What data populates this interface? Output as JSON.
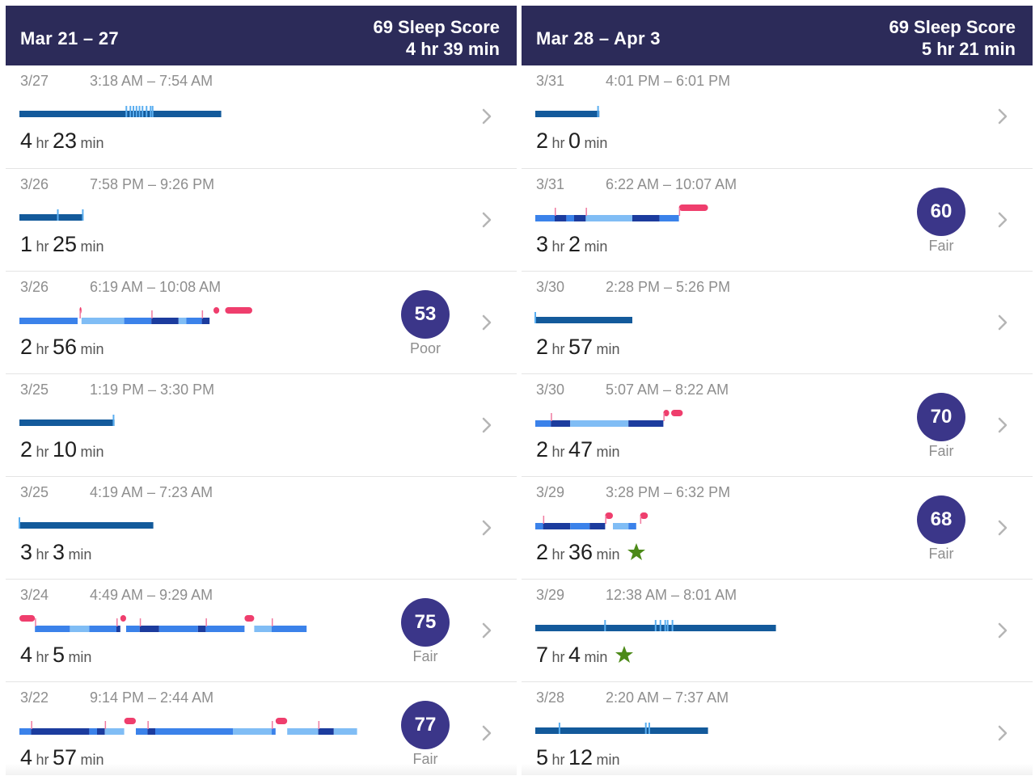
{
  "colors": {
    "header_bg": "#2c2b59",
    "score_circle": "#3b3689",
    "awake_pink": "#ef3e6d",
    "deep_blue": "#1c3c9e",
    "core_blue": "#3b82ea",
    "rem_light": "#80bdf5",
    "classic_bar": "#135a9b",
    "star_green": "#4c8a18"
  },
  "left": {
    "header": {
      "range": "Mar 21 – 27",
      "score": "69 Sleep Score",
      "duration": "4 hr 39 min"
    },
    "rows": [
      {
        "date": "3/27",
        "time": "3:18 AM – 7:54 AM",
        "hours": "4",
        "minutes": "23",
        "hr_unit": "hr",
        "min_unit": "min",
        "kind": "classic",
        "length": 0.52,
        "marks": [
          0.53,
          0.55,
          0.565,
          0.58,
          0.595,
          0.61,
          0.63,
          0.65,
          0.66
        ]
      },
      {
        "date": "3/26",
        "time": "7:58 PM – 9:26 PM",
        "hours": "1",
        "minutes": "25",
        "hr_unit": "hr",
        "min_unit": "min",
        "kind": "classic",
        "length": 0.165,
        "marks": [
          0.6,
          0.99
        ]
      },
      {
        "date": "3/26",
        "time": "6:19 AM – 10:08 AM",
        "hours": "2",
        "minutes": "56",
        "hr_unit": "hr",
        "min_unit": "min",
        "kind": "stages",
        "length": 0.6,
        "score": "53",
        "score_label": "Poor",
        "segments": [
          [
            "core",
            0,
            0.15
          ],
          [
            "awake",
            0.155,
            0.16
          ],
          [
            "rem",
            0.16,
            0.27
          ],
          [
            "core",
            0.27,
            0.34
          ],
          [
            "deep",
            0.34,
            0.41
          ],
          [
            "rem",
            0.41,
            0.43
          ],
          [
            "core",
            0.43,
            0.47
          ],
          [
            "deep",
            0.47,
            0.49
          ],
          [
            "awake",
            0.5,
            0.515
          ],
          [
            "awake",
            0.53,
            0.6
          ]
        ]
      },
      {
        "date": "3/25",
        "time": "1:19 PM – 3:30 PM",
        "hours": "2",
        "minutes": "10",
        "hr_unit": "hr",
        "min_unit": "min",
        "kind": "classic",
        "length": 0.245,
        "marks": [
          0.99
        ]
      },
      {
        "date": "3/25",
        "time": "4:19 AM – 7:23 AM",
        "hours": "3",
        "minutes": "3",
        "hr_unit": "hr",
        "min_unit": "min",
        "kind": "classic",
        "length": 0.345,
        "marks": [
          0.0
        ]
      },
      {
        "date": "3/24",
        "time": "4:49 AM – 9:29 AM",
        "hours": "4",
        "minutes": "5",
        "hr_unit": "hr",
        "min_unit": "min",
        "kind": "stages",
        "length": 0.74,
        "score": "75",
        "score_label": "Fair",
        "segments": [
          [
            "awake",
            0,
            0.04
          ],
          [
            "core",
            0.04,
            0.13
          ],
          [
            "rem",
            0.13,
            0.18
          ],
          [
            "core",
            0.18,
            0.25
          ],
          [
            "deep",
            0.25,
            0.26
          ],
          [
            "awake",
            0.26,
            0.275
          ],
          [
            "core",
            0.275,
            0.31
          ],
          [
            "deep",
            0.31,
            0.36
          ],
          [
            "core",
            0.36,
            0.46
          ],
          [
            "deep",
            0.46,
            0.48
          ],
          [
            "core",
            0.48,
            0.58
          ],
          [
            "awake",
            0.58,
            0.605
          ],
          [
            "rem",
            0.605,
            0.65
          ],
          [
            "core",
            0.65,
            0.74
          ]
        ]
      },
      {
        "date": "3/22",
        "time": "9:14 PM – 2:44 AM",
        "hours": "4",
        "minutes": "57",
        "hr_unit": "hr",
        "min_unit": "min",
        "kind": "stages",
        "length": 0.87,
        "score": "77",
        "score_label": "Fair",
        "segments": [
          [
            "core",
            0,
            0.03
          ],
          [
            "deep",
            0.03,
            0.18
          ],
          [
            "core",
            0.18,
            0.2
          ],
          [
            "deep",
            0.2,
            0.22
          ],
          [
            "rem",
            0.22,
            0.27
          ],
          [
            "awake",
            0.27,
            0.3
          ],
          [
            "core",
            0.3,
            0.33
          ],
          [
            "deep",
            0.33,
            0.35
          ],
          [
            "core",
            0.35,
            0.55
          ],
          [
            "rem",
            0.55,
            0.65
          ],
          [
            "core",
            0.65,
            0.66
          ],
          [
            "awake",
            0.66,
            0.69
          ],
          [
            "rem",
            0.69,
            0.77
          ],
          [
            "deep",
            0.77,
            0.81
          ],
          [
            "rem",
            0.81,
            0.87
          ]
        ]
      }
    ]
  },
  "right": {
    "header": {
      "range": "Mar 28 – Apr 3",
      "score": "69 Sleep Score",
      "duration": "5 hr 21 min"
    },
    "rows": [
      {
        "date": "3/31",
        "time": "4:01 PM – 6:01 PM",
        "hours": "2",
        "minutes": "0",
        "hr_unit": "hr",
        "min_unit": "min",
        "kind": "classic",
        "length": 0.165,
        "marks": [
          0.98
        ]
      },
      {
        "date": "3/31",
        "time": "6:22 AM – 10:07 AM",
        "hours": "3",
        "minutes": "2",
        "hr_unit": "hr",
        "min_unit": "min",
        "kind": "stages",
        "length": 0.445,
        "score": "60",
        "score_label": "Fair",
        "segments": [
          [
            "core",
            0,
            0.05
          ],
          [
            "deep",
            0.05,
            0.08
          ],
          [
            "core",
            0.08,
            0.1
          ],
          [
            "deep",
            0.1,
            0.13
          ],
          [
            "rem",
            0.13,
            0.25
          ],
          [
            "deep",
            0.25,
            0.32
          ],
          [
            "core",
            0.32,
            0.37
          ],
          [
            "awake",
            0.37,
            0.445
          ]
        ]
      },
      {
        "date": "3/30",
        "time": "2:28 PM – 5:26 PM",
        "hours": "2",
        "minutes": "57",
        "hr_unit": "hr",
        "min_unit": "min",
        "kind": "classic",
        "length": 0.25,
        "marks": [
          0.0
        ]
      },
      {
        "date": "3/30",
        "time": "5:07 AM – 8:22 AM",
        "hours": "2",
        "minutes": "47",
        "hr_unit": "hr",
        "min_unit": "min",
        "kind": "stages",
        "length": 0.38,
        "score": "70",
        "score_label": "Fair",
        "segments": [
          [
            "core",
            0,
            0.04
          ],
          [
            "deep",
            0.04,
            0.09
          ],
          [
            "rem",
            0.09,
            0.24
          ],
          [
            "deep",
            0.24,
            0.33
          ],
          [
            "awake",
            0.33,
            0.345
          ],
          [
            "awake",
            0.35,
            0.38
          ]
        ]
      },
      {
        "date": "3/29",
        "time": "3:28 PM – 6:32 PM",
        "hours": "2",
        "minutes": "36",
        "hr_unit": "hr",
        "min_unit": "min",
        "kind": "stages",
        "length": 0.36,
        "star": true,
        "score": "68",
        "score_label": "Fair",
        "segments": [
          [
            "core",
            0,
            0.02
          ],
          [
            "deep",
            0.02,
            0.09
          ],
          [
            "core",
            0.09,
            0.14
          ],
          [
            "deep",
            0.14,
            0.18
          ],
          [
            "awake",
            0.18,
            0.2
          ],
          [
            "rem",
            0.2,
            0.24
          ],
          [
            "core",
            0.24,
            0.26
          ],
          [
            "awake",
            0.27,
            0.29
          ]
        ]
      },
      {
        "date": "3/29",
        "time": "12:38 AM – 8:01 AM",
        "hours": "7",
        "minutes": "4",
        "hr_unit": "hr",
        "min_unit": "min",
        "kind": "classic",
        "length": 0.62,
        "star": true,
        "marks": [
          0.29,
          0.5,
          0.52,
          0.54,
          0.55,
          0.57
        ]
      },
      {
        "date": "3/28",
        "time": "2:20 AM – 7:37 AM",
        "hours": "5",
        "minutes": "12",
        "hr_unit": "hr",
        "min_unit": "min",
        "kind": "classic",
        "length": 0.445,
        "marks": [
          0.14,
          0.64,
          0.66
        ]
      }
    ]
  }
}
